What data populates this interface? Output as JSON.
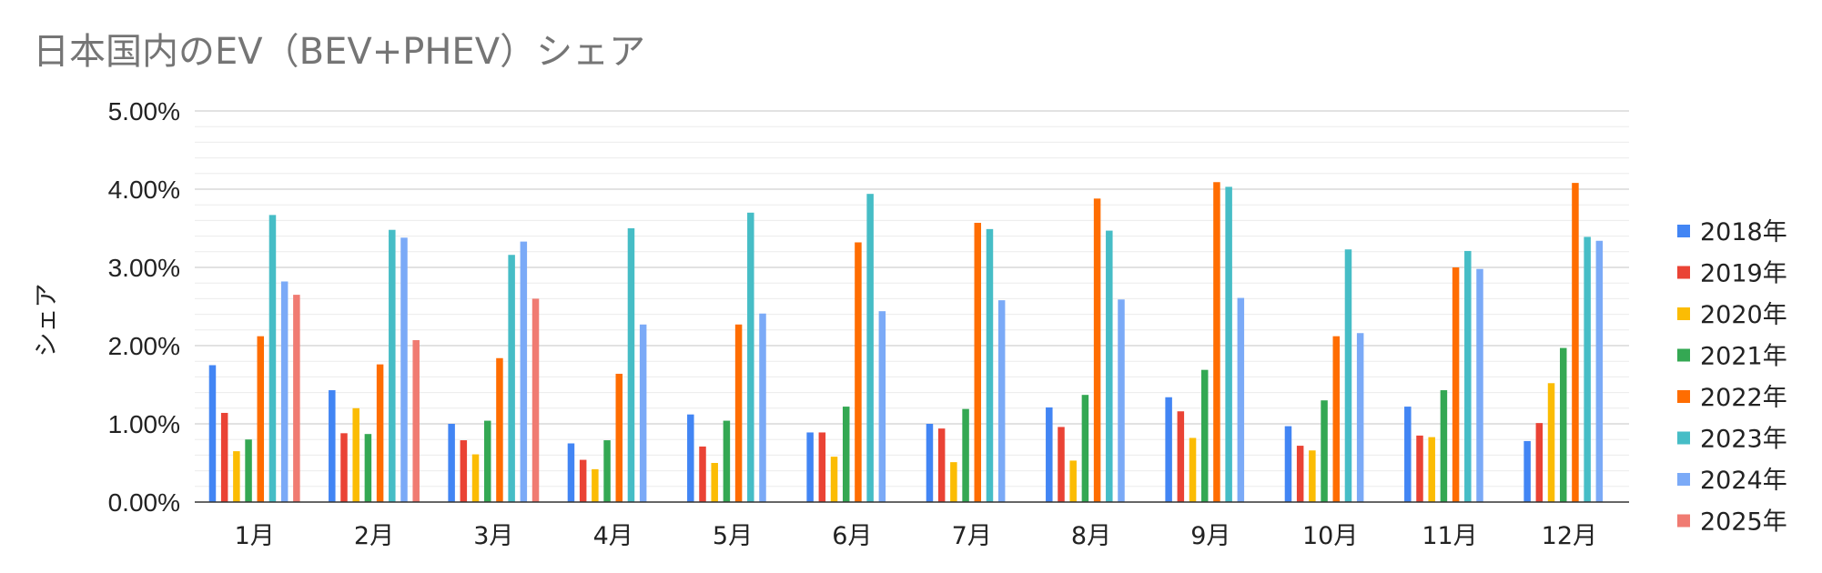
{
  "chart_data": {
    "type": "bar",
    "title": "日本国内のEV（BEV+PHEV）シェア",
    "xlabel": "",
    "ylabel": "シェア",
    "ylim": [
      0,
      5.0
    ],
    "ytick_labels": [
      "0.00%",
      "1.00%",
      "2.00%",
      "3.00%",
      "4.00%",
      "5.00%"
    ],
    "grid": true,
    "legend_position": "right",
    "categories": [
      "1月",
      "2月",
      "3月",
      "4月",
      "5月",
      "6月",
      "7月",
      "8月",
      "9月",
      "10月",
      "11月",
      "12月"
    ],
    "series": [
      {
        "name": "2018年",
        "color": "#4285F4",
        "values": [
          1.75,
          1.43,
          1.0,
          0.75,
          1.12,
          0.89,
          1.0,
          1.21,
          1.34,
          0.97,
          1.22,
          0.78
        ]
      },
      {
        "name": "2019年",
        "color": "#EA4335",
        "values": [
          1.14,
          0.88,
          0.79,
          0.54,
          0.71,
          0.89,
          0.94,
          0.96,
          1.16,
          0.72,
          0.85,
          1.01
        ]
      },
      {
        "name": "2020年",
        "color": "#FBBC04",
        "values": [
          0.65,
          1.2,
          0.61,
          0.42,
          0.5,
          0.58,
          0.51,
          0.53,
          0.82,
          0.66,
          0.83,
          1.52
        ]
      },
      {
        "name": "2021年",
        "color": "#34A853",
        "values": [
          0.8,
          0.87,
          1.04,
          0.79,
          1.04,
          1.22,
          1.19,
          1.37,
          1.69,
          1.3,
          1.43,
          1.97
        ]
      },
      {
        "name": "2022年",
        "color": "#FF6D01",
        "values": [
          2.12,
          1.76,
          1.84,
          1.64,
          2.27,
          3.32,
          3.57,
          3.88,
          4.09,
          2.12,
          3.0,
          4.08
        ]
      },
      {
        "name": "2023年",
        "color": "#46BDC6",
        "values": [
          3.67,
          3.48,
          3.16,
          3.5,
          3.7,
          3.94,
          3.49,
          3.47,
          4.03,
          3.23,
          3.21,
          3.39
        ]
      },
      {
        "name": "2024年",
        "color": "#7BAAF7",
        "values": [
          2.82,
          3.38,
          3.33,
          2.27,
          2.41,
          2.44,
          2.58,
          2.59,
          2.61,
          2.16,
          2.98,
          3.34
        ]
      },
      {
        "name": "2025年",
        "color": "#F07B72",
        "values": [
          2.65,
          2.07,
          2.6,
          null,
          null,
          null,
          null,
          null,
          null,
          null,
          null,
          null
        ]
      }
    ]
  }
}
